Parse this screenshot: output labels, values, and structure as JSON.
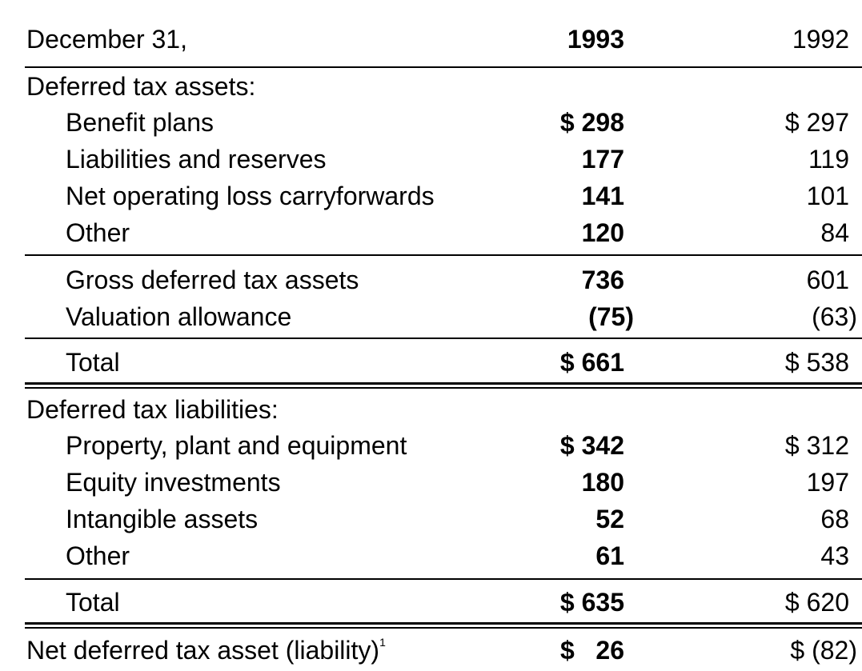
{
  "table": {
    "header": {
      "label": "December 31,",
      "col_1993": "1993",
      "col_1992": "1992"
    },
    "assets_heading": "Deferred tax assets:",
    "assets": [
      {
        "label": "Benefit plans",
        "v1993": "$ 298",
        "v1992": "$ 297"
      },
      {
        "label": "Liabilities and reserves",
        "v1993": "177",
        "v1992": "119"
      },
      {
        "label": "Net operating loss carryforwards",
        "v1993": "141",
        "v1992": "101"
      },
      {
        "label": "Other",
        "v1993": "120",
        "v1992": "84"
      }
    ],
    "gross": {
      "label": "Gross deferred tax assets",
      "v1993": "736",
      "v1992": "601"
    },
    "valuation": {
      "label": "Valuation allowance",
      "v1993": "(75)",
      "v1992": "(63)"
    },
    "assets_total": {
      "label": "Total",
      "v1993": "$ 661",
      "v1992": "$ 538"
    },
    "liabilities_heading": "Deferred tax liabilities:",
    "liabilities": [
      {
        "label": "Property, plant and equipment",
        "v1993": "$ 342",
        "v1992": "$ 312"
      },
      {
        "label": "Equity investments",
        "v1993": "180",
        "v1992": "197"
      },
      {
        "label": "Intangible assets",
        "v1993": "52",
        "v1992": "68"
      },
      {
        "label": "Other",
        "v1993": "61",
        "v1992": "43"
      }
    ],
    "liabilities_total": {
      "label": "Total",
      "v1993": "$ 635",
      "v1992": "$ 620"
    },
    "net": {
      "label": "Net deferred tax asset (liability)",
      "footnote": "1",
      "v1993": "$   26",
      "v1992": "$ (82)"
    }
  }
}
